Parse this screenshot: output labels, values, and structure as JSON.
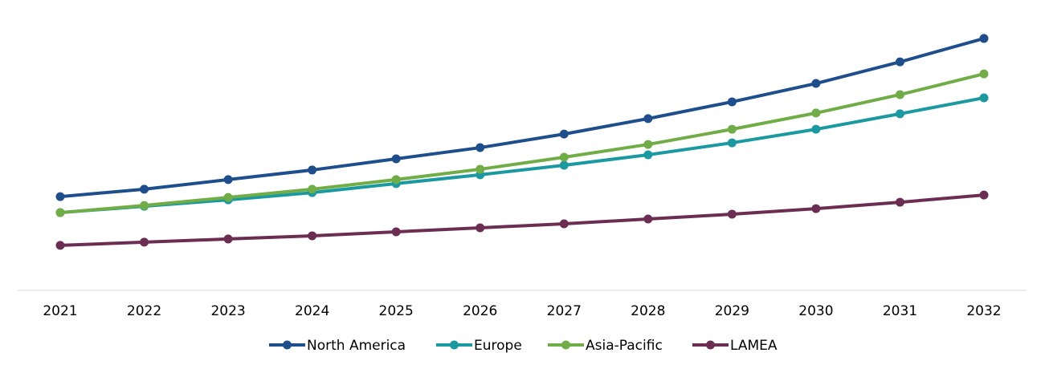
{
  "chart_data": {
    "type": "line",
    "categories": [
      "2021",
      "2022",
      "2023",
      "2024",
      "2025",
      "2026",
      "2027",
      "2028",
      "2029",
      "2030",
      "2031",
      "2032"
    ],
    "series": [
      {
        "name": "North America",
        "color": "#1f4e8c",
        "values": [
          35.2,
          38.0,
          41.6,
          45.2,
          49.4,
          53.6,
          58.7,
          64.5,
          70.8,
          77.7,
          85.8,
          94.6
        ]
      },
      {
        "name": "Europe",
        "color": "#1a9aa0",
        "values": [
          29.2,
          31.6,
          34.0,
          36.7,
          40.1,
          43.4,
          47.0,
          50.9,
          55.4,
          60.5,
          66.3,
          72.3
        ]
      },
      {
        "name": "Asia-Pacific",
        "color": "#70ad47",
        "values": [
          29.2,
          31.9,
          34.9,
          38.0,
          41.6,
          45.5,
          50.0,
          54.8,
          60.5,
          66.6,
          73.5,
          81.3
        ]
      },
      {
        "name": "LAMEA",
        "color": "#6b2d52",
        "values": [
          16.9,
          18.1,
          19.3,
          20.5,
          22.0,
          23.5,
          25.0,
          26.8,
          28.6,
          30.7,
          33.1,
          35.8
        ]
      }
    ],
    "ylim": [
      0,
      100
    ],
    "legend": "bottom"
  }
}
